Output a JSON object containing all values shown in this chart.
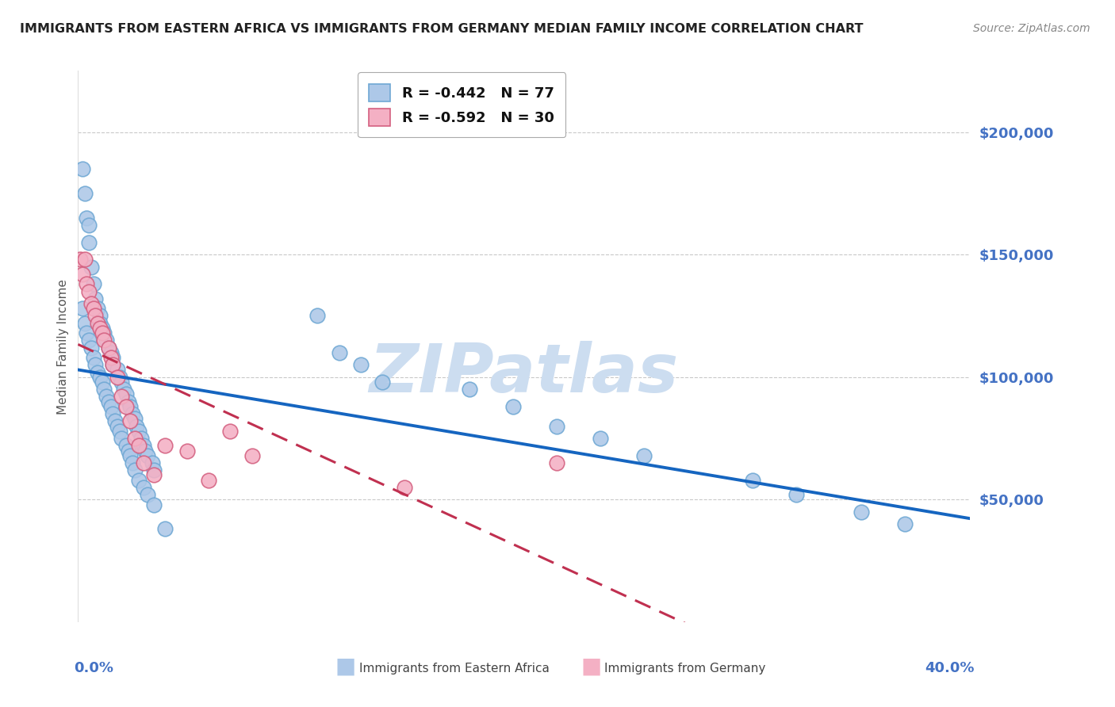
{
  "title": "IMMIGRANTS FROM EASTERN AFRICA VS IMMIGRANTS FROM GERMANY MEDIAN FAMILY INCOME CORRELATION CHART",
  "source": "Source: ZipAtlas.com",
  "ylabel": "Median Family Income",
  "series1_name": "Immigrants from Eastern Africa",
  "series2_name": "Immigrants from Germany",
  "series1_color": "#adc8e8",
  "series1_edge": "#6fa8d4",
  "series1_line": "#1565c0",
  "series2_color": "#f4b0c4",
  "series2_edge": "#d46080",
  "series2_line": "#c03050",
  "R1": -0.442,
  "N1": 77,
  "R2": -0.592,
  "N2": 30,
  "series1_x": [
    0.002,
    0.003,
    0.004,
    0.005,
    0.005,
    0.006,
    0.007,
    0.008,
    0.009,
    0.01,
    0.01,
    0.011,
    0.012,
    0.013,
    0.014,
    0.015,
    0.016,
    0.016,
    0.018,
    0.019,
    0.02,
    0.021,
    0.022,
    0.023,
    0.024,
    0.025,
    0.026,
    0.027,
    0.028,
    0.029,
    0.03,
    0.031,
    0.032,
    0.034,
    0.035,
    0.04,
    0.002,
    0.003,
    0.004,
    0.005,
    0.006,
    0.007,
    0.008,
    0.009,
    0.01,
    0.011,
    0.012,
    0.013,
    0.014,
    0.015,
    0.016,
    0.017,
    0.018,
    0.019,
    0.02,
    0.022,
    0.023,
    0.024,
    0.025,
    0.026,
    0.028,
    0.03,
    0.032,
    0.035,
    0.11,
    0.12,
    0.13,
    0.14,
    0.18,
    0.2,
    0.22,
    0.24,
    0.26,
    0.31,
    0.33,
    0.36,
    0.38
  ],
  "series1_y": [
    185000,
    175000,
    165000,
    162000,
    155000,
    145000,
    138000,
    132000,
    128000,
    125000,
    122000,
    120000,
    118000,
    115000,
    112000,
    110000,
    108000,
    105000,
    103000,
    100000,
    98000,
    95000,
    93000,
    90000,
    88000,
    85000,
    83000,
    80000,
    78000,
    75000,
    72000,
    70000,
    68000,
    65000,
    62000,
    38000,
    128000,
    122000,
    118000,
    115000,
    112000,
    108000,
    105000,
    102000,
    100000,
    98000,
    95000,
    92000,
    90000,
    88000,
    85000,
    82000,
    80000,
    78000,
    75000,
    72000,
    70000,
    68000,
    65000,
    62000,
    58000,
    55000,
    52000,
    48000,
    125000,
    110000,
    105000,
    98000,
    95000,
    88000,
    80000,
    75000,
    68000,
    58000,
    52000,
    45000,
    40000
  ],
  "series2_x": [
    0.001,
    0.002,
    0.003,
    0.004,
    0.005,
    0.006,
    0.007,
    0.008,
    0.009,
    0.01,
    0.011,
    0.012,
    0.014,
    0.015,
    0.016,
    0.018,
    0.02,
    0.022,
    0.024,
    0.026,
    0.028,
    0.03,
    0.035,
    0.04,
    0.05,
    0.06,
    0.07,
    0.08,
    0.15,
    0.22
  ],
  "series2_y": [
    148000,
    142000,
    148000,
    138000,
    135000,
    130000,
    128000,
    125000,
    122000,
    120000,
    118000,
    115000,
    112000,
    108000,
    105000,
    100000,
    92000,
    88000,
    82000,
    75000,
    72000,
    65000,
    60000,
    72000,
    70000,
    58000,
    78000,
    68000,
    55000,
    65000
  ],
  "yticks": [
    0,
    50000,
    100000,
    150000,
    200000
  ],
  "ytick_labels": [
    "",
    "$50,000",
    "$100,000",
    "$150,000",
    "$200,000"
  ],
  "axis_label_color": "#4472c4",
  "grid_color": "#bbbbbb",
  "title_color": "#222222",
  "source_color": "#888888",
  "watermark_text": "ZIPatlas",
  "watermark_color": "#ccddf0",
  "background_color": "#ffffff"
}
